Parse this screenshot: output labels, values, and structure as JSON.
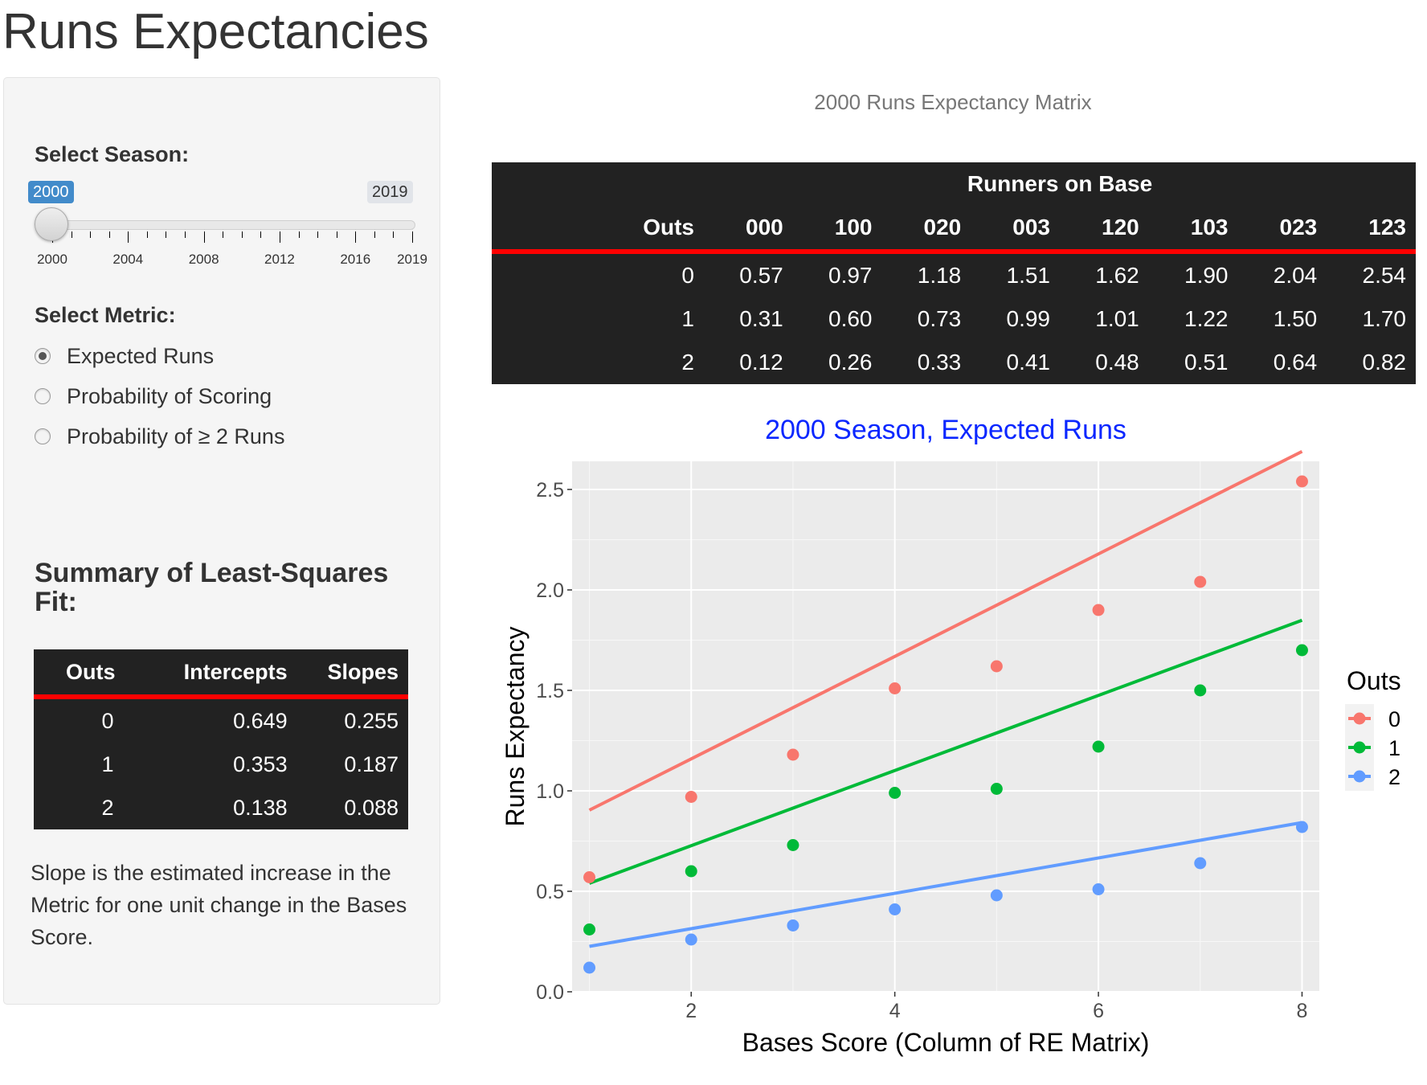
{
  "page": {
    "title": "Runs Expectancies"
  },
  "sidebar": {
    "season_label": "Select Season:",
    "slider": {
      "min": 2000,
      "max": 2019,
      "value": 2000,
      "from_badge": "2000",
      "to_badge": "2019",
      "tick_labels": [
        "2000",
        "2004",
        "2008",
        "2012",
        "2016",
        "2019"
      ]
    },
    "metric_label": "Select Metric:",
    "metric_options": [
      {
        "label": "Expected Runs",
        "selected": true
      },
      {
        "label": "Probability of Scoring",
        "selected": false
      },
      {
        "label": "Probability of ≥ 2 Runs",
        "selected": false
      }
    ],
    "summary_title": "Summary of Least-Squares Fit:",
    "summary_table": {
      "headers": [
        "Outs",
        "Intercepts",
        "Slopes"
      ],
      "rows": [
        [
          "0",
          "0.649",
          "0.255"
        ],
        [
          "1",
          "0.353",
          "0.187"
        ],
        [
          "2",
          "0.138",
          "0.088"
        ]
      ]
    },
    "note": "Slope is the estimated increase in the Metric for one unit change in the Bases Score."
  },
  "matrix": {
    "caption": "2000 Runs Expectancy Matrix",
    "group_header": "Runners on Base",
    "columns": [
      "Outs",
      "000",
      "100",
      "020",
      "003",
      "120",
      "103",
      "023",
      "123"
    ],
    "rows": [
      [
        "0",
        "0.57",
        "0.97",
        "1.18",
        "1.51",
        "1.62",
        "1.90",
        "2.04",
        "2.54"
      ],
      [
        "1",
        "0.31",
        "0.60",
        "0.73",
        "0.99",
        "1.01",
        "1.22",
        "1.50",
        "1.70"
      ],
      [
        "2",
        "0.12",
        "0.26",
        "0.33",
        "0.41",
        "0.48",
        "0.51",
        "0.64",
        "0.82"
      ]
    ]
  },
  "chart_data": {
    "type": "scatter",
    "title": "2000 Season, Expected Runs",
    "title_color": "#0b27ff",
    "xlabel": "Bases Score (Column of RE Matrix)",
    "ylabel": "Runs Expectancy",
    "xlim": [
      0.83,
      8.17
    ],
    "ylim": [
      0,
      2.64
    ],
    "xticks": [
      2,
      4,
      6,
      8
    ],
    "yticks": [
      "0.0",
      "0.5",
      "1.0",
      "1.5",
      "2.0",
      "2.5"
    ],
    "grid": true,
    "background": "#ebebeb",
    "legend": {
      "title": "Outs",
      "position": "right"
    },
    "x": [
      1,
      2,
      3,
      4,
      5,
      6,
      7,
      8
    ],
    "series": [
      {
        "name": "0",
        "color": "#f8766d",
        "values": [
          0.57,
          0.97,
          1.18,
          1.51,
          1.62,
          1.9,
          2.04,
          2.54
        ],
        "intercept": 0.649,
        "slope": 0.255
      },
      {
        "name": "1",
        "color": "#00ba38",
        "values": [
          0.31,
          0.6,
          0.73,
          0.99,
          1.01,
          1.22,
          1.5,
          1.7
        ],
        "intercept": 0.353,
        "slope": 0.187
      },
      {
        "name": "2",
        "color": "#619cff",
        "values": [
          0.12,
          0.26,
          0.33,
          0.41,
          0.48,
          0.51,
          0.64,
          0.82
        ],
        "intercept": 0.138,
        "slope": 0.088
      }
    ]
  }
}
